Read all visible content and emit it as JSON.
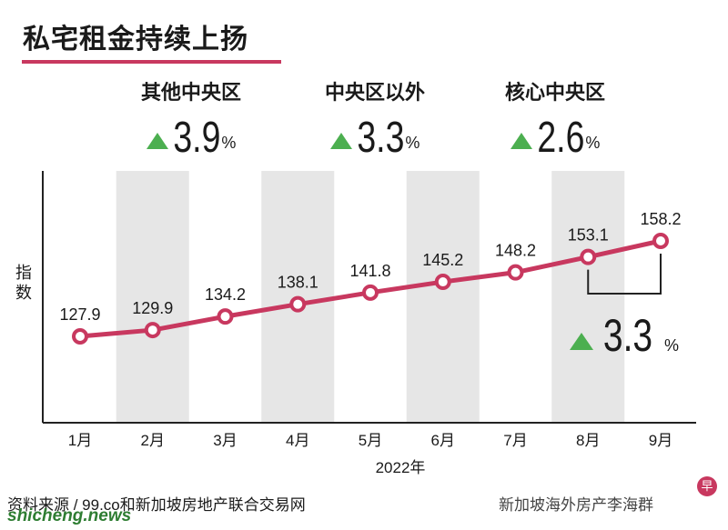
{
  "title": "私宅租金持续上扬",
  "highlights": [
    {
      "label": "其他中央区",
      "value": "3.9",
      "unit": "%"
    },
    {
      "label": "中央区以外",
      "value": "3.3",
      "unit": "%"
    },
    {
      "label": "核心中央区",
      "value": "2.6",
      "unit": "%"
    }
  ],
  "colors": {
    "line": "#c8385f",
    "band": "#e6e6e6",
    "up": "#4caf50"
  },
  "chart_data": {
    "type": "line",
    "ylabel": "指数",
    "xlabel": "2022年",
    "categories": [
      "1月",
      "2月",
      "3月",
      "4月",
      "5月",
      "6月",
      "7月",
      "8月",
      "9月"
    ],
    "values": [
      127.9,
      129.9,
      134.2,
      138.1,
      141.8,
      145.2,
      148.2,
      153.1,
      158.2
    ],
    "value_labels": [
      "127.9",
      "129.9",
      "134.2",
      "138.1",
      "141.8",
      "145.2",
      "148.2",
      "153.1",
      "158.2"
    ],
    "annotation": {
      "from": "8月",
      "to": "9月",
      "value": "3.3",
      "unit": "%"
    }
  },
  "source": "资料来源 / 99.co和新加坡房地产联合交易网",
  "watermark": "shicheng.news",
  "brand": "新加坡海外房产李海群",
  "brand_icon": "早"
}
